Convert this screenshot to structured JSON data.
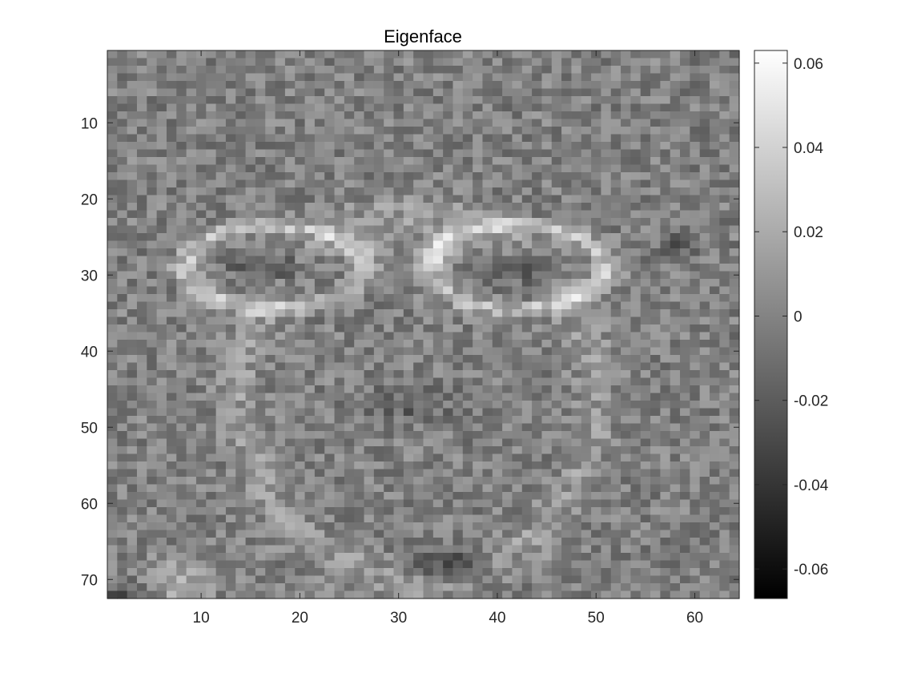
{
  "chart_data": {
    "type": "heatmap",
    "title": "Eigenface",
    "xlabel": "",
    "ylabel": "",
    "grid": false,
    "colormap": "gray",
    "image_size": {
      "columns": 64,
      "rows": 72
    },
    "xlim": [
      0.5,
      64.5
    ],
    "ylim": [
      0.5,
      72.5
    ],
    "y_direction": "reverse",
    "x_ticks": [
      10,
      20,
      30,
      40,
      50,
      60
    ],
    "x_tick_labels": [
      "10",
      "20",
      "30",
      "40",
      "50",
      "60"
    ],
    "y_ticks": [
      10,
      20,
      30,
      40,
      50,
      60,
      70
    ],
    "y_tick_labels": [
      "10",
      "20",
      "30",
      "40",
      "50",
      "60",
      "70"
    ],
    "colorbar": {
      "location": "right",
      "clim": [
        -0.067,
        0.063
      ],
      "ticks": [
        -0.06,
        -0.04,
        -0.02,
        0,
        0.02,
        0.04,
        0.06
      ],
      "tick_labels": [
        "-0.06",
        "-0.04",
        "-0.02",
        "0",
        "0.02",
        "0.04",
        "0.06"
      ]
    }
  }
}
